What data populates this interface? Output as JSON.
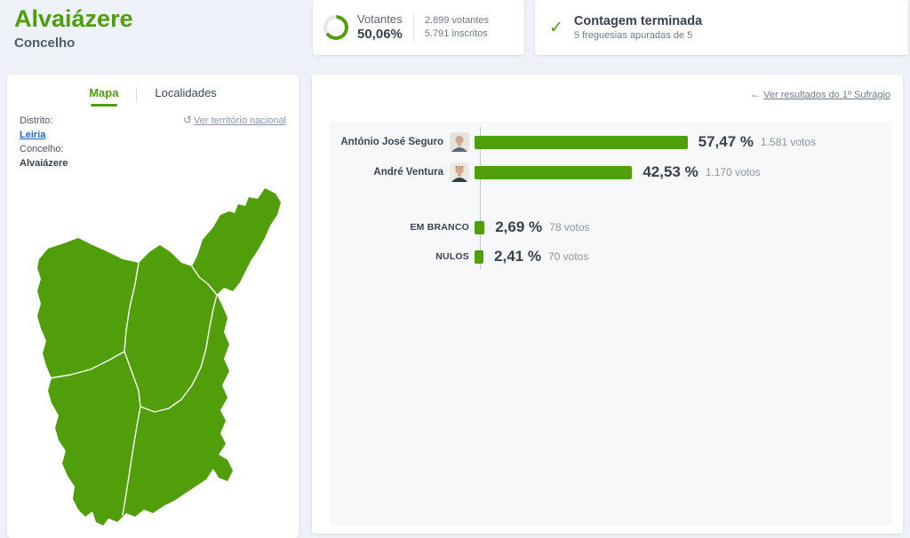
{
  "page": {
    "title": "Alvaiázere",
    "subtitle": "Concelho"
  },
  "turnout": {
    "label": "Votantes",
    "percent": "50,06%",
    "percent_value": 50.06,
    "voters": "2.899 votantes",
    "registered": "5.791 inscritos"
  },
  "count_status": {
    "title": "Contagem terminada",
    "subtitle": "5 freguesias apuradas de 5",
    "check_icon": "✓"
  },
  "map_panel": {
    "tabs": [
      {
        "label": "Mapa"
      },
      {
        "label": "Localidades"
      }
    ],
    "district_label": "Distrito:",
    "district_value": "Leiria",
    "municipality_label": "Concelho:",
    "municipality_value": "Alvaiázere",
    "reset_link": "Ver território nacional",
    "reset_icon": "↺"
  },
  "results_panel": {
    "back_link": "Ver resultados do 1º Sufrágio",
    "back_arrow": "←",
    "candidates": [
      {
        "name": "António José Seguro",
        "percent": "57,47 %",
        "votes": "1.581 votos",
        "percent_value": 57.47
      },
      {
        "name": "André Ventura",
        "percent": "42,53 %",
        "votes": "1.170 votos",
        "percent_value": 42.53
      }
    ],
    "others": [
      {
        "name": "EM BRANCO",
        "percent": "2,69 %",
        "votes": "78 votos",
        "percent_value": 2.69
      },
      {
        "name": "NULOS",
        "percent": "2,41 %",
        "votes": "70 votos",
        "percent_value": 2.41
      }
    ]
  },
  "colors": {
    "accent_green": "#4f9e0a",
    "link_blue": "#1669d9",
    "dark_text": "#37424e",
    "muted_text": "#6e7987",
    "page_bg": "#eef2f8",
    "plot_bg": "#f6f8fa"
  },
  "chart_data": {
    "type": "bar",
    "orientation": "horizontal",
    "categories": [
      "António José Seguro",
      "André Ventura",
      "EM BRANCO",
      "NULOS"
    ],
    "values": [
      57.47,
      42.53,
      2.69,
      2.41
    ],
    "votes": [
      1581,
      1170,
      78,
      70
    ],
    "value_labels": [
      "57,47 %",
      "42,53 %",
      "2,69 %",
      "2,41 %"
    ],
    "votes_labels": [
      "1.581 votos",
      "1.170 votos",
      "78 votos",
      "70 votos"
    ],
    "xlim": [
      0,
      100
    ],
    "unit": "%",
    "bar_color": "#4f9e0a",
    "grid": false,
    "legend": false
  }
}
